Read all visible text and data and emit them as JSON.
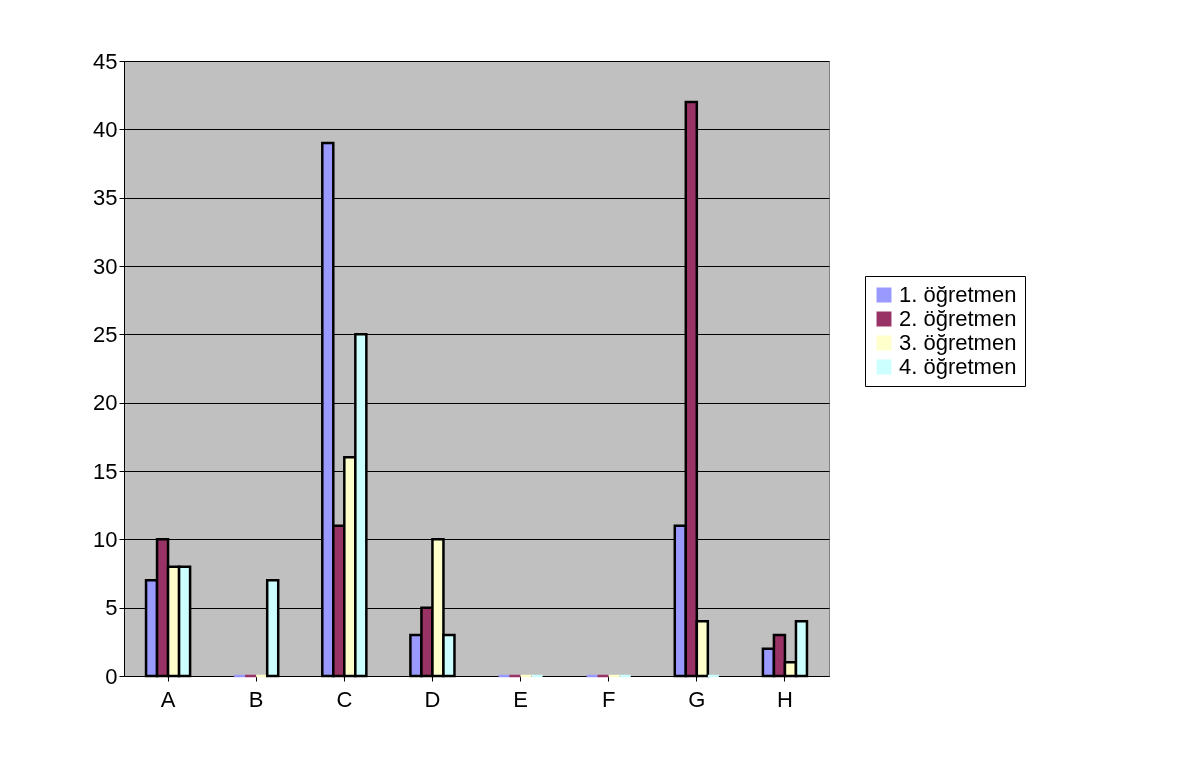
{
  "chart_data": {
    "type": "bar",
    "categories": [
      "A",
      "B",
      "C",
      "D",
      "E",
      "F",
      "G",
      "H"
    ],
    "series": [
      {
        "name": "1. öğretmen",
        "color": "#9999ff",
        "values": [
          7,
          0,
          39,
          3,
          0,
          0,
          11,
          2
        ]
      },
      {
        "name": "2. öğretmen",
        "color": "#993366",
        "values": [
          10,
          0,
          11,
          5,
          0,
          0,
          42,
          3
        ]
      },
      {
        "name": "3. öğretmen",
        "color": "#ffffcc",
        "values": [
          8,
          0,
          16,
          10,
          0,
          0,
          4,
          1
        ]
      },
      {
        "name": "4. öğretmen",
        "color": "#ccffff",
        "values": [
          8,
          7,
          25,
          3,
          0,
          0,
          0,
          4
        ]
      }
    ],
    "ylim": [
      0,
      45
    ],
    "yticks": [
      0,
      5,
      10,
      15,
      20,
      25,
      30,
      35,
      40,
      45
    ],
    "grid": "y",
    "legend": "right"
  }
}
